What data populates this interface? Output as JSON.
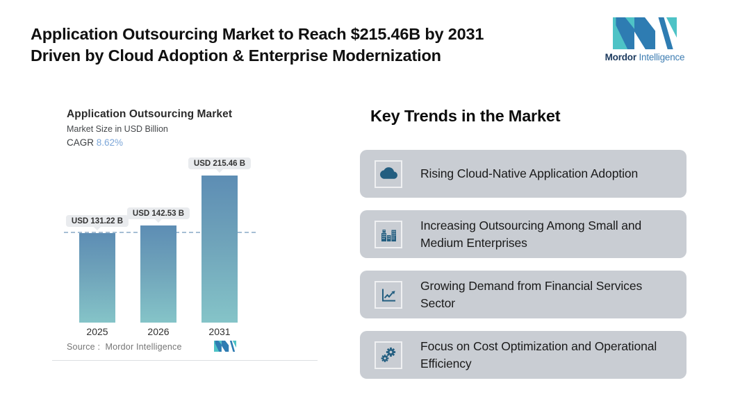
{
  "header": {
    "title_line1": "Application Outsourcing Market to Reach $215.46B by 2031",
    "title_line2": "Driven by Cloud Adoption & Enterprise Modernization",
    "logo": {
      "brand_bold": "Mordor",
      "brand_light": "Intelligence"
    }
  },
  "chart": {
    "title": "Application Outsourcing Market",
    "subtitle": "Market Size in USD Billion",
    "cagr_label": "CAGR",
    "cagr_value": "8.62%",
    "source_label": "Source :",
    "source_value": "Mordor Intelligence"
  },
  "chart_data": {
    "type": "bar",
    "title": "Application Outsourcing Market",
    "subtitle": "Market Size in USD Billion",
    "cagr": "8.62%",
    "categories": [
      "2025",
      "2026",
      "2031"
    ],
    "values": [
      131.22,
      142.53,
      215.46
    ],
    "value_labels": [
      "USD 131.22 B",
      "USD 142.53 B",
      "USD 215.46 B"
    ],
    "unit": "USD Billion",
    "ylim": [
      0,
      230
    ],
    "baseline_value": 131.22,
    "grid": "off",
    "bar_gradient_top": "#5d8db4",
    "bar_gradient_bottom": "#85c4c8",
    "dashed_line_color": "#a6bed4"
  },
  "trends": {
    "heading": "Key Trends in the Market",
    "card_bg": "#c9cdd3",
    "icon_color": "#235e80",
    "cards": [
      {
        "icon": "cloud-icon",
        "text": "Rising Cloud-Native Application Adoption"
      },
      {
        "icon": "buildings-icon",
        "text": "Increasing Outsourcing Among Small and Medium Enterprises"
      },
      {
        "icon": "line-chart-icon",
        "text": "Growing Demand from Financial Services Sector"
      },
      {
        "icon": "gears-icon",
        "text": "Focus on Cost Optimization and Operational Efficiency"
      }
    ]
  },
  "colors": {
    "logo_teal": "#4ec3c6",
    "logo_blue": "#2e7cb2",
    "card_gray": "#c9cdd3",
    "icon_blue": "#235e80"
  }
}
